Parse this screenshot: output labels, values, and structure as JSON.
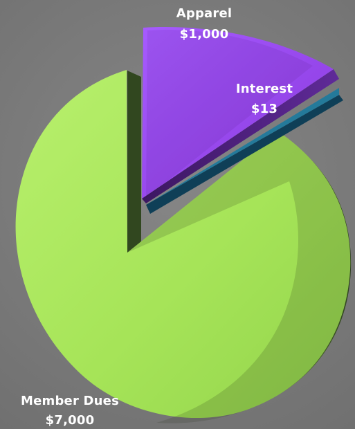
{
  "chart_data": {
    "type": "pie",
    "title": "",
    "legend": "none",
    "exploded": true,
    "is_3d": true,
    "slices": [
      {
        "label": "Member Dues",
        "value_text": "$7,000",
        "value": 7000,
        "color": "#a9e85a",
        "side_color": "#4b6b2a"
      },
      {
        "label": "Apparel",
        "value_text": "$1,000",
        "value": 1000,
        "color": "#9544ea",
        "side_color": "#4a1c7a"
      },
      {
        "label": "Interest",
        "value_text": "$13",
        "value": 13,
        "color": "#1f6f8f",
        "side_color": "#0f3f57"
      }
    ]
  }
}
